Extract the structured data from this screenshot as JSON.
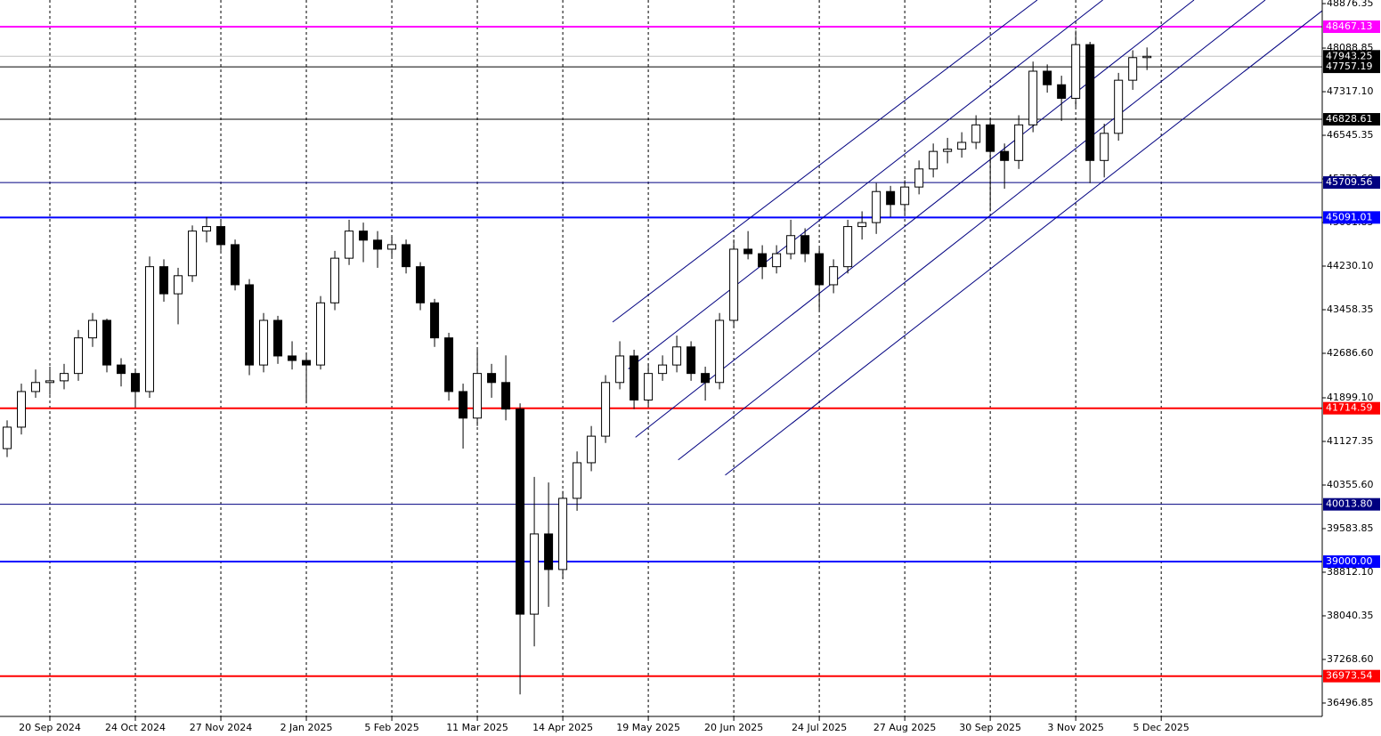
{
  "chart_data": {
    "type": "candlestick",
    "series": [
      {
        "values": [
          [
            41000,
            41500,
            40850,
            41380
          ],
          [
            41380,
            42150,
            41250,
            42010
          ],
          [
            42010,
            42400,
            41900,
            42170
          ],
          [
            42170,
            42450,
            41950,
            42200
          ],
          [
            42200,
            42500,
            42050,
            42330
          ],
          [
            42330,
            43100,
            42200,
            42960
          ],
          [
            42960,
            43400,
            42800,
            43270
          ],
          [
            43270,
            43300,
            42350,
            42480
          ],
          [
            42480,
            42600,
            42100,
            42330
          ],
          [
            42330,
            42400,
            41750,
            42010
          ],
          [
            42010,
            44400,
            41900,
            44220
          ],
          [
            44220,
            44350,
            43600,
            43740
          ],
          [
            43740,
            44200,
            43200,
            44060
          ],
          [
            44060,
            44950,
            43950,
            44850
          ],
          [
            44850,
            45100,
            44650,
            44930
          ],
          [
            44930,
            45050,
            44500,
            44610
          ],
          [
            44610,
            44700,
            43800,
            43900
          ],
          [
            43900,
            44000,
            42300,
            42480
          ],
          [
            42480,
            43400,
            42350,
            43270
          ],
          [
            43270,
            43350,
            42500,
            42640
          ],
          [
            42640,
            42900,
            42400,
            42560
          ],
          [
            42560,
            42700,
            41800,
            42480
          ],
          [
            42480,
            43700,
            42400,
            43580
          ],
          [
            43580,
            44500,
            43450,
            44370
          ],
          [
            44370,
            45050,
            44250,
            44850
          ],
          [
            44850,
            45000,
            44300,
            44690
          ],
          [
            44690,
            44850,
            44200,
            44530
          ],
          [
            44530,
            44750,
            44400,
            44610
          ],
          [
            44610,
            44700,
            44100,
            44220
          ],
          [
            44220,
            44300,
            43450,
            43580
          ],
          [
            43580,
            43650,
            42800,
            42960
          ],
          [
            42960,
            43050,
            41850,
            42010
          ],
          [
            42010,
            42150,
            41000,
            41540
          ],
          [
            41540,
            42750,
            41400,
            42330
          ],
          [
            42330,
            42500,
            41900,
            42170
          ],
          [
            42170,
            42650,
            41500,
            41700
          ],
          [
            41700,
            41800,
            36650,
            38070
          ],
          [
            38070,
            40500,
            37500,
            39490
          ],
          [
            39490,
            40400,
            38200,
            38860
          ],
          [
            38860,
            40250,
            38700,
            40120
          ],
          [
            40120,
            40950,
            39900,
            40750
          ],
          [
            40750,
            41400,
            40600,
            41220
          ],
          [
            41220,
            42300,
            41100,
            42170
          ],
          [
            42170,
            42900,
            42050,
            42640
          ],
          [
            42640,
            42750,
            41700,
            41860
          ],
          [
            41860,
            42500,
            41750,
            42330
          ],
          [
            42330,
            42650,
            42200,
            42480
          ],
          [
            42480,
            43000,
            42350,
            42800
          ],
          [
            42800,
            42900,
            42200,
            42330
          ],
          [
            42330,
            42450,
            41850,
            42170
          ],
          [
            42170,
            43400,
            42050,
            43270
          ],
          [
            43270,
            44700,
            43150,
            44530
          ],
          [
            44530,
            44850,
            44350,
            44450
          ],
          [
            44450,
            44600,
            44000,
            44220
          ],
          [
            44220,
            44600,
            44100,
            44450
          ],
          [
            44450,
            45050,
            44350,
            44770
          ],
          [
            44770,
            44900,
            44300,
            44450
          ],
          [
            44450,
            44550,
            43450,
            43900
          ],
          [
            43900,
            44350,
            43750,
            44220
          ],
          [
            44220,
            45050,
            44100,
            44930
          ],
          [
            44930,
            45200,
            44700,
            45000
          ],
          [
            45000,
            45700,
            44800,
            45550
          ],
          [
            45550,
            45650,
            45100,
            45320
          ],
          [
            45320,
            45750,
            45150,
            45630
          ],
          [
            45630,
            46100,
            45500,
            45950
          ],
          [
            45950,
            46400,
            45800,
            46260
          ],
          [
            46260,
            46500,
            46050,
            46300
          ],
          [
            46300,
            46600,
            46150,
            46420
          ],
          [
            46420,
            46900,
            46300,
            46730
          ],
          [
            46730,
            46850,
            45200,
            46260
          ],
          [
            46260,
            46400,
            45600,
            46100
          ],
          [
            46100,
            46900,
            45950,
            46730
          ],
          [
            46730,
            47850,
            46600,
            47680
          ],
          [
            47680,
            47800,
            47300,
            47440
          ],
          [
            47440,
            47600,
            46800,
            47200
          ],
          [
            47200,
            48400,
            47050,
            48150
          ],
          [
            48150,
            48200,
            45700,
            46100
          ],
          [
            46100,
            46750,
            45800,
            46580
          ],
          [
            46580,
            47650,
            46450,
            47520
          ],
          [
            47520,
            48050,
            47350,
            47920
          ],
          [
            47920,
            48100,
            47700,
            47943.25
          ]
        ]
      }
    ],
    "xlim": [
      -0.5,
      92.3
    ],
    "xticks": [
      {
        "value": 3,
        "label": "20 Sep 2024"
      },
      {
        "value": 9,
        "label": "24 Oct 2024"
      },
      {
        "value": 15,
        "label": "27 Nov 2024"
      },
      {
        "value": 21,
        "label": "2 Jan 2025"
      },
      {
        "value": 27,
        "label": "5 Feb 2025"
      },
      {
        "value": 33,
        "label": "11 Mar 2025"
      },
      {
        "value": 39,
        "label": "14 Apr 2025"
      },
      {
        "value": 45,
        "label": "19 May 2025"
      },
      {
        "value": 51,
        "label": "20 Jun 2025"
      },
      {
        "value": 57,
        "label": "24 Jul 2025"
      },
      {
        "value": 63,
        "label": "27 Aug 2025"
      },
      {
        "value": 69,
        "label": "30 Sep 2025"
      },
      {
        "value": 75,
        "label": "3 Nov 2025"
      },
      {
        "value": 81,
        "label": "5 Dec 2025"
      }
    ],
    "ylim": [
      36260,
      48940
    ],
    "yticks": [
      48876.35,
      48088.85,
      {
        "value": 47317.1,
        "label": "47317.10"
      },
      46545.35,
      {
        "value": 45773.6,
        "label": "45773.60"
      },
      45001.85,
      {
        "value": 44230.1,
        "label": "44230.10"
      },
      43458.35,
      {
        "value": 42686.6,
        "label": "42686.60"
      },
      {
        "value": 41899.1,
        "label": "41899.10"
      },
      41127.35,
      {
        "value": 40355.6,
        "label": "40355.60"
      },
      39583.85,
      {
        "value": 38812.1,
        "label": "38812.10"
      },
      38040.35,
      {
        "value": 37268.6,
        "label": "37268.60"
      },
      36496.85
    ],
    "last_price": 47943.25,
    "levels": [
      {
        "value": 48467.13,
        "label": "48467.13",
        "color": "#ff00ff"
      },
      {
        "value": 47757.19,
        "label": "47757.19",
        "color": "#000000"
      },
      {
        "value": 46828.61,
        "label": "46828.61",
        "color": "#000000"
      },
      {
        "value": 45709.56,
        "label": "45709.56",
        "color": "#000080"
      },
      {
        "value": 45091.01,
        "label": "45091.01",
        "color": "#0000ff"
      },
      {
        "value": 41714.59,
        "label": "41714.59",
        "color": "#ff0000"
      },
      {
        "value": 40013.8,
        "label": "40013.80",
        "color": "#000080"
      },
      {
        "value": 39000,
        "label": "39000.00",
        "color": "#0000ff"
      },
      {
        "value": 36973.54,
        "label": "36973.54",
        "color": "#ff0000"
      }
    ],
    "trendlines": [
      {
        "color": "#000080",
        "points": [
          [
            42.5,
            43240
          ],
          [
            72.3,
            48940
          ]
        ]
      },
      {
        "color": "#000080",
        "points": [
          [
            43.6,
            42410
          ],
          [
            76.9,
            48940
          ]
        ]
      },
      {
        "color": "#000080",
        "points": [
          [
            44.1,
            41200
          ],
          [
            83.3,
            48940
          ]
        ]
      },
      {
        "color": "#000080",
        "points": [
          [
            47.1,
            40800
          ],
          [
            88.3,
            48940
          ]
        ]
      },
      {
        "color": "#000080",
        "points": [
          [
            50.4,
            40530
          ],
          [
            92.3,
            48750
          ]
        ]
      }
    ],
    "grid": true
  }
}
